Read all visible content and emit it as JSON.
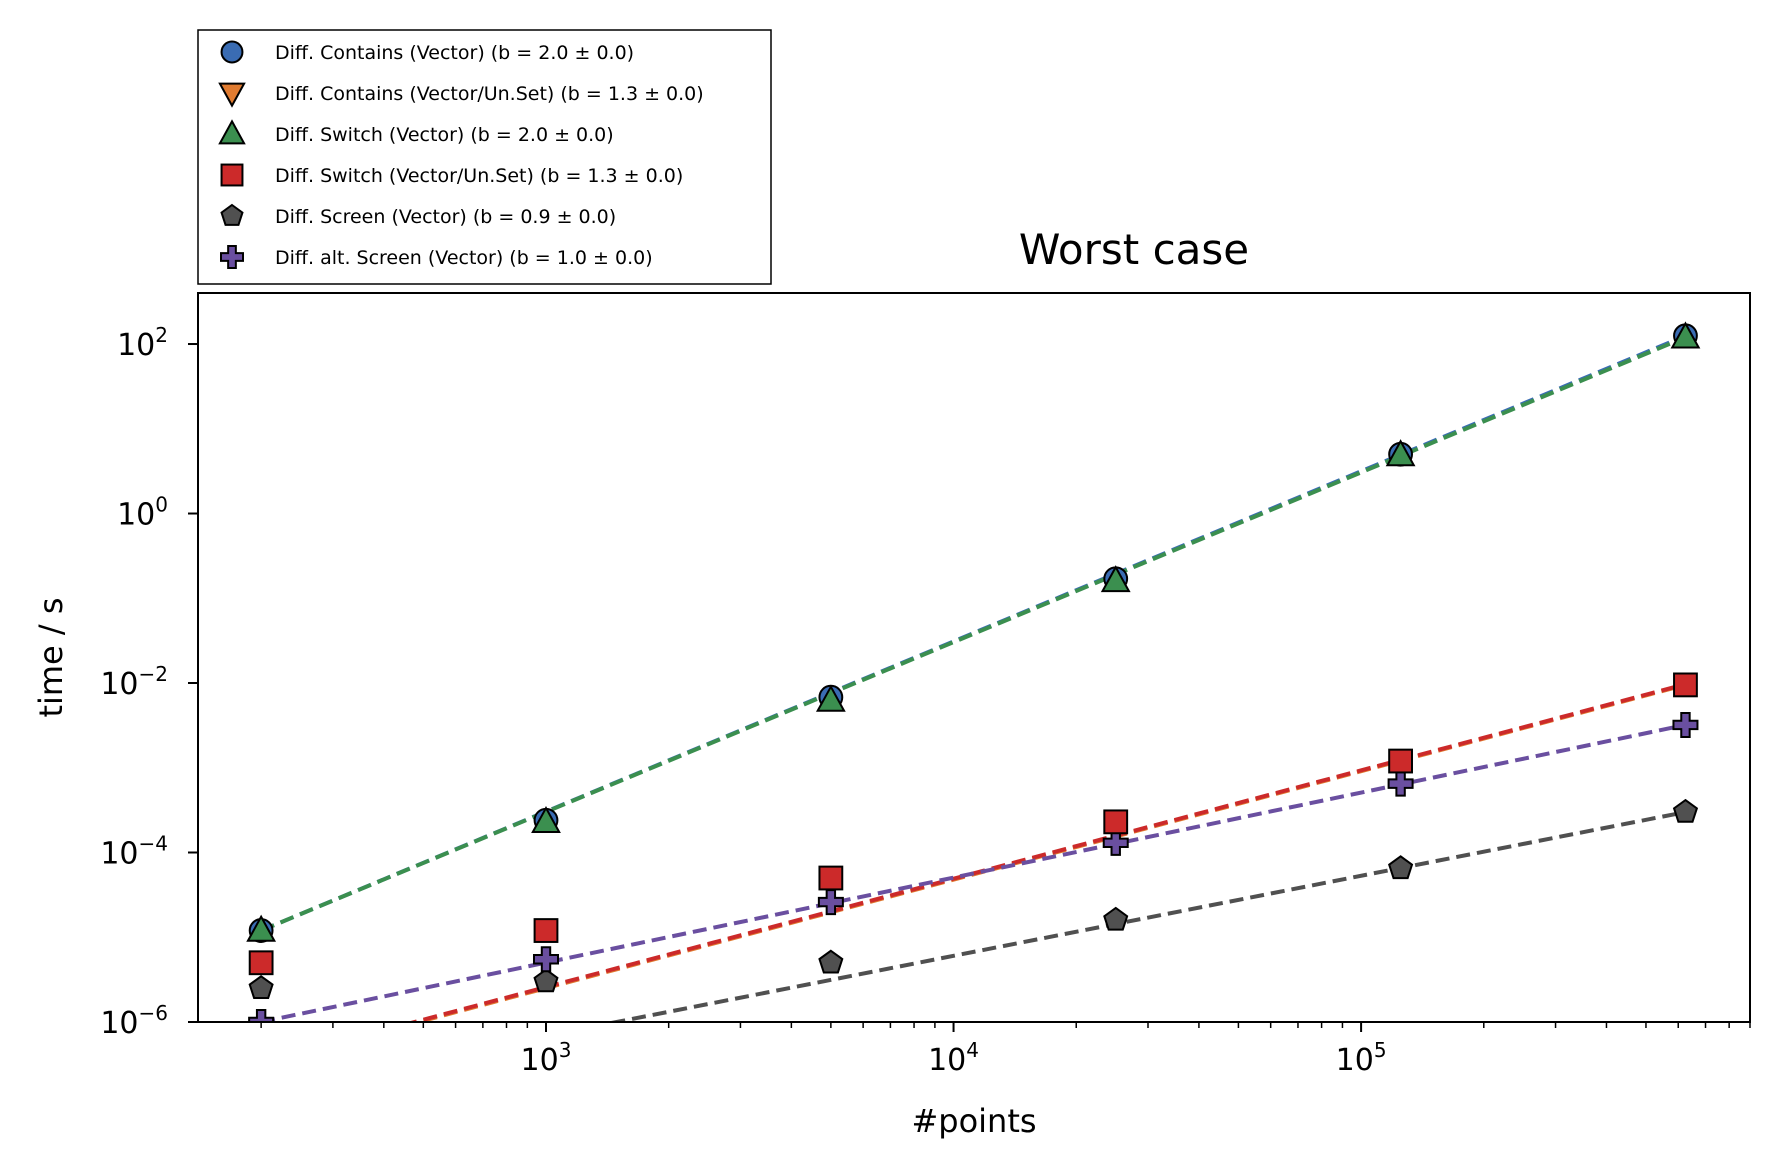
{
  "chart_data": {
    "type": "scatter",
    "title": "Worst case",
    "xlabel": "#points",
    "ylabel": "time / s",
    "xscale": "log",
    "yscale": "log",
    "xlim": [
      140,
      900000
    ],
    "ylim": [
      1e-06,
      400
    ],
    "grid": false,
    "legend_position": "above-left",
    "x_ticks": [
      {
        "base": "10",
        "exp": "3",
        "value": 1000
      },
      {
        "base": "10",
        "exp": "4",
        "value": 10000
      },
      {
        "base": "10",
        "exp": "5",
        "value": 100000
      }
    ],
    "y_ticks": [
      {
        "base": "10",
        "exp": "2",
        "value": 100
      },
      {
        "base": "10",
        "exp": "0",
        "value": 1
      },
      {
        "base": "10",
        "exp": "−2",
        "value": 0.01
      },
      {
        "base": "10",
        "exp": "−4",
        "value": 0.0001
      },
      {
        "base": "10",
        "exp": "−6",
        "value": 1e-06
      }
    ],
    "x": [
      200,
      1000,
      5000,
      25000,
      125000,
      625000
    ],
    "series": [
      {
        "name": "Diff. Contains (Vector) (b = 2.0 ± 0.0)",
        "marker": "circle",
        "color": "#3a6cb3",
        "values": [
          1.2e-05,
          0.00024,
          0.0068,
          0.17,
          5.0,
          125
        ],
        "fit": [
          1.2e-05,
          125
        ]
      },
      {
        "name": "Diff. Contains (Vector/Un.Set) (b = 1.3 ± 0.0)",
        "marker": "triangle-down",
        "color": "#e07b30",
        "values": [],
        "fit": [
          3.2e-07,
          0.0095
        ]
      },
      {
        "name": "Diff. Switch (Vector) (b = 2.0 ± 0.0)",
        "marker": "triangle-up",
        "color": "#3b8f4f",
        "values": [
          1.2e-05,
          0.00023,
          0.0062,
          0.16,
          4.9,
          120
        ],
        "fit": [
          1.2e-05,
          120
        ]
      },
      {
        "name": "Diff. Switch (Vector/Un.Set) (b = 1.3 ± 0.0)",
        "marker": "square",
        "color": "#cc2a2a",
        "values": [
          5e-06,
          1.2e-05,
          5e-05,
          0.00023,
          0.0012,
          0.0095
        ],
        "fit": [
          3.3e-07,
          0.0097
        ]
      },
      {
        "name": "Diff. Screen (Vector) (b = 0.9 ± 0.0)",
        "marker": "pentagon",
        "color": "#505050",
        "values": [
          2.5e-06,
          3e-06,
          5e-06,
          1.6e-05,
          6.5e-05,
          0.0003
        ],
        "fit": [
          1.5e-07,
          0.0003
        ]
      },
      {
        "name": "Diff. alt. Screen (Vector) (b = 1.0 ± 0.0)",
        "marker": "plus",
        "color": "#6a4fa0",
        "values": [
          1e-06,
          5.5e-06,
          2.6e-05,
          0.00013,
          0.00065,
          0.0032
        ],
        "fit": [
          1e-06,
          0.0032
        ]
      }
    ]
  }
}
